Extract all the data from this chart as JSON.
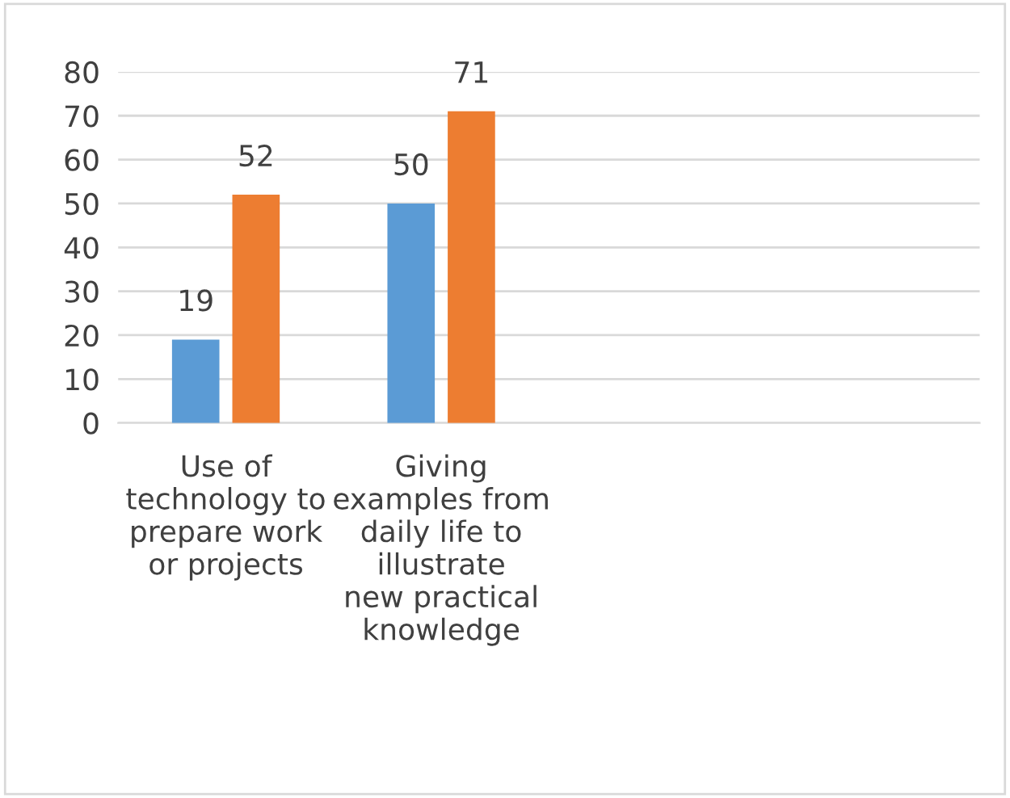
{
  "chart_data": {
    "type": "bar",
    "categories": [
      "Use of technology to prepare work or projects",
      "Giving examples from daily life to illustrate new practical knowledge",
      null,
      null
    ],
    "series": [
      {
        "color": "#5b9bd5",
        "values": [
          19,
          50,
          null,
          null
        ]
      },
      {
        "color": "#ed7d31",
        "values": [
          52,
          71,
          null,
          null
        ]
      }
    ],
    "ylim": [
      0,
      80
    ],
    "yticks": [
      0,
      10,
      20,
      30,
      40,
      50,
      60,
      70,
      80
    ],
    "grid": "y",
    "data_labels": true
  }
}
